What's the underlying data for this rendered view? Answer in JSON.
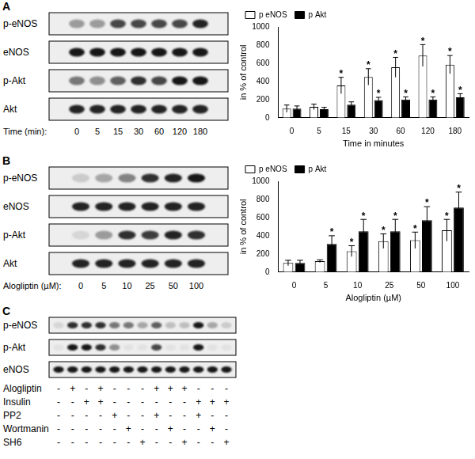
{
  "chart_data": [
    {
      "type": "bar",
      "categories": [
        0,
        5,
        15,
        30,
        60,
        120,
        180
      ],
      "x_label": "Time in minutes",
      "y_label": "in % of control",
      "ylim": [
        0,
        1000
      ],
      "yticks": [
        0,
        200,
        400,
        600,
        800,
        1000
      ],
      "grid": false,
      "legend": "top-left",
      "series": [
        {
          "name": "p eNOS",
          "color": "#ffffff",
          "values": [
            100,
            120,
            355,
            450,
            555,
            685,
            585
          ],
          "errors": [
            40,
            30,
            90,
            90,
            110,
            120,
            100
          ]
        },
        {
          "name": "p Akt",
          "color": "#000000",
          "values": [
            100,
            95,
            145,
            195,
            200,
            200,
            225
          ],
          "errors": [
            30,
            20,
            30,
            30,
            30,
            30,
            40
          ]
        }
      ],
      "annotations": [
        {
          "series": "p eNOS",
          "category": 15,
          "text": "*"
        },
        {
          "series": "p eNOS",
          "category": 30,
          "text": "*"
        },
        {
          "series": "p eNOS",
          "category": 60,
          "text": "*"
        },
        {
          "series": "p eNOS",
          "category": 120,
          "text": "*"
        },
        {
          "series": "p eNOS",
          "category": 180,
          "text": "*"
        },
        {
          "series": "p Akt",
          "category": 30,
          "text": "*"
        },
        {
          "series": "p Akt",
          "category": 60,
          "text": "*"
        },
        {
          "series": "p Akt",
          "category": 120,
          "text": "*"
        },
        {
          "series": "p Akt",
          "category": 180,
          "text": "*"
        }
      ]
    },
    {
      "type": "bar",
      "categories": [
        0,
        5,
        10,
        25,
        50,
        100
      ],
      "x_label": "Alogliptin (µM)",
      "y_label": "in % of control",
      "ylim": [
        0,
        1000
      ],
      "yticks": [
        0,
        200,
        400,
        600,
        800,
        1000
      ],
      "grid": false,
      "legend": "top-left",
      "series": [
        {
          "name": "p eNOS",
          "color": "#ffffff",
          "values": [
            100,
            120,
            230,
            340,
            350,
            460
          ],
          "errors": [
            30,
            15,
            60,
            80,
            90,
            120
          ]
        },
        {
          "name": "p Akt",
          "color": "#000000",
          "values": [
            100,
            310,
            450,
            450,
            570,
            710
          ],
          "errors": [
            30,
            90,
            130,
            130,
            150,
            170
          ]
        }
      ],
      "annotations": [
        {
          "series": "p eNOS",
          "category": 10,
          "text": "*"
        },
        {
          "series": "p eNOS",
          "category": 25,
          "text": "*"
        },
        {
          "series": "p eNOS",
          "category": 50,
          "text": "*"
        },
        {
          "series": "p eNOS",
          "category": 100,
          "text": "*"
        },
        {
          "series": "p Akt",
          "category": 5,
          "text": "*"
        },
        {
          "series": "p Akt",
          "category": 10,
          "text": "*"
        },
        {
          "series": "p Akt",
          "category": 25,
          "text": "*"
        },
        {
          "series": "p Akt",
          "category": 50,
          "text": "*"
        },
        {
          "series": "p Akt",
          "category": 100,
          "text": "*"
        }
      ]
    }
  ],
  "blots": [
    {
      "panel": "A",
      "rows": [
        {
          "label": "p-eNOS",
          "bands": [
            0.35,
            0.35,
            0.7,
            0.7,
            0.7,
            0.7,
            0.85
          ]
        },
        {
          "label": "eNOS",
          "bands": [
            0.9,
            0.9,
            0.9,
            0.9,
            0.9,
            0.9,
            0.9
          ]
        },
        {
          "label": "p-Akt",
          "bands": [
            0.5,
            0.4,
            0.6,
            0.8,
            0.7,
            0.9,
            0.9
          ]
        },
        {
          "label": "Akt",
          "bands": [
            0.85,
            0.85,
            0.85,
            0.85,
            0.85,
            0.85,
            0.85
          ]
        }
      ],
      "lane_label": "Time (min):",
      "lanes": [
        0,
        5,
        15,
        30,
        60,
        120,
        180
      ]
    },
    {
      "panel": "B",
      "rows": [
        {
          "label": "p-eNOS",
          "bands": [
            0.15,
            0.3,
            0.45,
            0.8,
            0.85,
            0.9
          ]
        },
        {
          "label": "eNOS",
          "bands": [
            0.85,
            0.85,
            0.85,
            0.85,
            0.85,
            0.85
          ]
        },
        {
          "label": "p-Akt",
          "bands": [
            0.1,
            0.35,
            0.8,
            0.75,
            0.85,
            0.8
          ]
        },
        {
          "label": "Akt",
          "bands": [
            0.85,
            0.85,
            0.85,
            0.85,
            0.85,
            0.85
          ]
        }
      ],
      "lane_label": "Alogliptin (µM):",
      "lanes": [
        0,
        5,
        10,
        25,
        50,
        100
      ]
    },
    {
      "panel": "C",
      "rows": [
        {
          "label": "p-eNOS",
          "bands": [
            0.1,
            0.8,
            0.8,
            0.8,
            0.5,
            0.5,
            0.3,
            0.6,
            0.2,
            0.2,
            0.9,
            0.3,
            0.15
          ]
        },
        {
          "label": "p-Akt",
          "bands": [
            0.05,
            0.9,
            0.9,
            0.8,
            0.4,
            0.05,
            0.05,
            0.7,
            0.05,
            0.05,
            0.9,
            0.05,
            0.05
          ]
        },
        {
          "label": "eNOS",
          "bands": [
            0.9,
            0.9,
            0.9,
            0.9,
            0.9,
            0.9,
            0.9,
            0.9,
            0.9,
            0.9,
            0.9,
            0.9,
            0.9
          ]
        }
      ],
      "treatments": [
        {
          "label": "Alogliptin",
          "signs": [
            "-",
            "+",
            "-",
            "+",
            "-",
            "-",
            "-",
            "+",
            "+",
            "+",
            "-",
            "-",
            "-"
          ]
        },
        {
          "label": "Insulin",
          "signs": [
            "-",
            "-",
            "+",
            "+",
            "-",
            "-",
            "-",
            "-",
            "-",
            "-",
            "+",
            "+",
            "+"
          ]
        },
        {
          "label": "PP2",
          "signs": [
            "-",
            "-",
            "-",
            "-",
            "+",
            "-",
            "-",
            "+",
            "-",
            "-",
            "+",
            "-",
            "-"
          ]
        },
        {
          "label": "Wortmanin",
          "signs": [
            "-",
            "-",
            "-",
            "-",
            "-",
            "+",
            "-",
            "-",
            "+",
            "-",
            "-",
            "+",
            "-"
          ]
        },
        {
          "label": "SH6",
          "signs": [
            "-",
            "-",
            "-",
            "-",
            "-",
            "-",
            "+",
            "-",
            "-",
            "+",
            "-",
            "-",
            "+"
          ]
        }
      ]
    }
  ]
}
